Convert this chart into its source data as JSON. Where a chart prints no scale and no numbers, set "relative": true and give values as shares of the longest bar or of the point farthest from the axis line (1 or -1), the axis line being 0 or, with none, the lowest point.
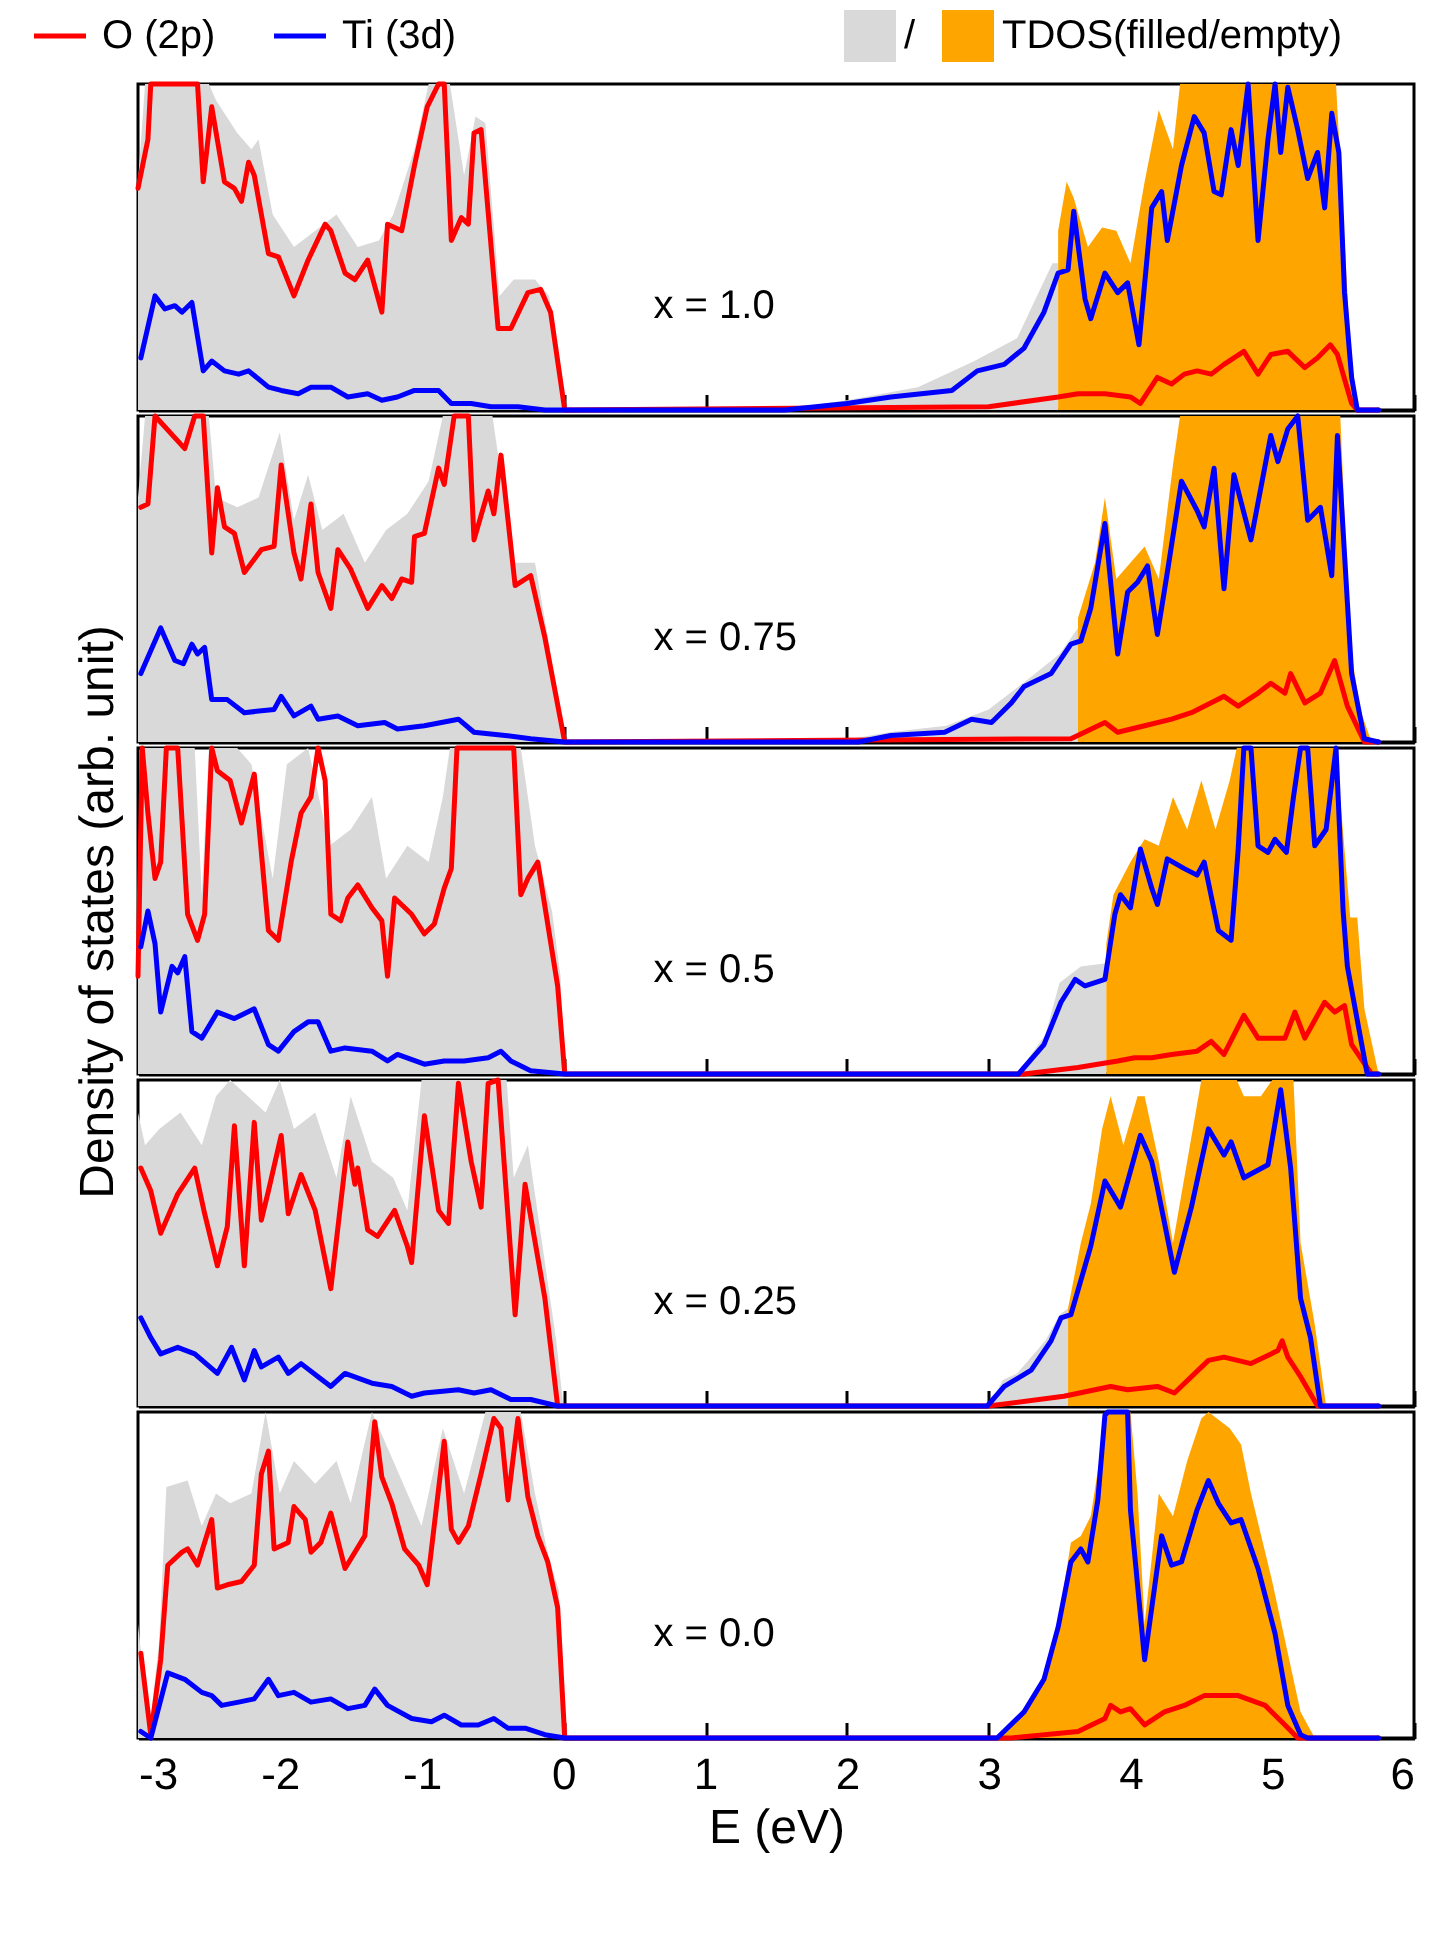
{
  "chart_data": [
    {
      "type": "line",
      "relative": true,
      "xlim": [
        -3,
        6
      ],
      "xticks": [
        -3,
        -2,
        -1,
        0,
        1,
        2,
        3,
        4,
        5,
        6
      ],
      "tick_labels": false,
      "legend": "top",
      "annotations": [
        "x = 1.0"
      ],
      "series": [
        {
          "name": "O (2p)",
          "color": "#ff0000",
          "type": "line",
          "x": [
            -3,
            -2.93,
            -2.91,
            -2.58,
            -2.54,
            -2.48,
            -2.39,
            -2.32,
            -2.27,
            -2.22,
            -2.18,
            -2.08,
            -2.01,
            -1.9,
            -1.8,
            -1.68,
            -1.64,
            -1.54,
            -1.47,
            -1.38,
            -1.28,
            -1.24,
            -1.14,
            -1.05,
            -0.96,
            -0.88,
            -0.84,
            -0.79,
            -0.72,
            -0.67,
            -0.63,
            -0.58,
            -0.46,
            -0.37,
            -0.25,
            -0.16,
            -0.09,
            0.01,
            3.0,
            3.49,
            3.63,
            3.82,
            4.0,
            4.07,
            4.19,
            4.29,
            4.38,
            4.47,
            4.57,
            4.66,
            4.8,
            4.9,
            4.99,
            5.11,
            5.23,
            5.32,
            5.41,
            5.46,
            5.56,
            5.6,
            5.75
          ],
          "values": [
            0.68,
            0.83,
            1,
            1,
            0.7,
            0.93,
            0.7,
            0.68,
            0.64,
            0.76,
            0.72,
            0.48,
            0.47,
            0.35,
            0.46,
            0.57,
            0.55,
            0.42,
            0.4,
            0.46,
            0.3,
            0.57,
            0.55,
            0.75,
            0.93,
            1,
            1,
            0.52,
            0.59,
            0.57,
            0.85,
            0.86,
            0.25,
            0.25,
            0.36,
            0.37,
            0.3,
            0,
            0.01,
            0.04,
            0.05,
            0.05,
            0.04,
            0.02,
            0.1,
            0.08,
            0.11,
            0.12,
            0.11,
            0.14,
            0.18,
            0.11,
            0.17,
            0.18,
            0.13,
            0.16,
            0.2,
            0.17,
            0.02,
            0,
            0
          ]
        },
        {
          "name": "Ti (3d)",
          "color": "#0000ff",
          "type": "line",
          "x": [
            -2.98,
            -2.88,
            -2.81,
            -2.74,
            -2.69,
            -2.62,
            -2.54,
            -2.48,
            -2.39,
            -2.29,
            -2.22,
            -2.08,
            -1.99,
            -1.87,
            -1.78,
            -1.64,
            -1.52,
            -1.38,
            -1.28,
            -1.17,
            -1.05,
            -0.88,
            -0.79,
            -0.65,
            -0.51,
            -0.32,
            -0.13,
            0.01,
            1.56,
            2.0,
            2.31,
            2.74,
            2.92,
            3.11,
            3.25,
            3.39,
            3.49,
            3.56,
            3.6,
            3.68,
            3.72,
            3.82,
            3.91,
            3.98,
            4.06,
            4.15,
            4.22,
            4.26,
            4.36,
            4.45,
            4.52,
            4.59,
            4.64,
            4.71,
            4.76,
            4.83,
            4.9,
            4.97,
            5.02,
            5.06,
            5.11,
            5.18,
            5.25,
            5.32,
            5.37,
            5.42,
            5.47,
            5.51,
            5.56,
            5.6,
            5.75
          ],
          "values": [
            0.16,
            0.35,
            0.31,
            0.32,
            0.3,
            0.33,
            0.12,
            0.15,
            0.12,
            0.11,
            0.12,
            0.07,
            0.06,
            0.05,
            0.07,
            0.07,
            0.04,
            0.05,
            0.03,
            0.04,
            0.06,
            0.06,
            0.02,
            0.02,
            0.01,
            0.01,
            0,
            0,
            0,
            0.02,
            0.04,
            0.06,
            0.12,
            0.14,
            0.19,
            0.3,
            0.42,
            0.43,
            0.61,
            0.34,
            0.28,
            0.42,
            0.36,
            0.39,
            0.2,
            0.62,
            0.67,
            0.52,
            0.75,
            0.9,
            0.85,
            0.67,
            0.66,
            0.86,
            0.75,
            1,
            0.52,
            0.83,
            1,
            0.79,
            0.99,
            0.86,
            0.71,
            0.79,
            0.62,
            0.91,
            0.79,
            0.36,
            0.1,
            0,
            0
          ]
        },
        {
          "name": "/",
          "color": "#d9d9d9",
          "type": "area",
          "x": [
            -3,
            -2.95,
            -2.5,
            -2.45,
            -2.3,
            -2.2,
            -2.15,
            -2.05,
            -1.9,
            -1.75,
            -1.6,
            -1.45,
            -1.3,
            -1.2,
            -1.05,
            -0.95,
            -0.8,
            -0.7,
            -0.62,
            -0.55,
            -0.45,
            -0.35,
            -0.2,
            -0.1,
            0,
            1.5,
            2,
            2.5,
            2.9,
            3.2,
            3.45,
            3.49
          ],
          "values": [
            0.7,
            1,
            1,
            0.95,
            0.85,
            0.8,
            0.83,
            0.6,
            0.5,
            0.55,
            0.6,
            0.5,
            0.52,
            0.6,
            0.8,
            1,
            1,
            0.72,
            0.9,
            0.88,
            0.35,
            0.4,
            0.4,
            0.35,
            0,
            0,
            0.03,
            0.07,
            0.15,
            0.22,
            0.45,
            0.45
          ]
        },
        {
          "name": "TDOS(filled/empty)",
          "color": "#ffa500",
          "type": "area",
          "x": [
            3.49,
            3.55,
            3.6,
            3.7,
            3.8,
            3.9,
            4.0,
            4.1,
            4.2,
            4.3,
            4.35,
            5.45,
            5.5,
            5.55,
            5.6
          ],
          "values": [
            0.55,
            0.7,
            0.65,
            0.5,
            0.56,
            0.55,
            0.45,
            0.7,
            0.92,
            0.8,
            1,
            1,
            0.6,
            0.2,
            0
          ]
        }
      ]
    },
    {
      "type": "line",
      "relative": true,
      "xlim": [
        -3,
        6
      ],
      "xticks": [
        -3,
        -2,
        -1,
        0,
        1,
        2,
        3,
        4,
        5,
        6
      ],
      "tick_labels": false,
      "annotations": [
        "x = 0.75"
      ],
      "series": [
        {
          "color": "#ff0000",
          "type": "line",
          "x": [
            -2.98,
            -2.93,
            -2.88,
            -2.67,
            -2.6,
            -2.54,
            -2.48,
            -2.44,
            -2.39,
            -2.32,
            -2.25,
            -2.13,
            -2.04,
            -1.99,
            -1.9,
            -1.85,
            -1.78,
            -1.73,
            -1.64,
            -1.59,
            -1.5,
            -1.38,
            -1.28,
            -1.21,
            -1.14,
            -1.07,
            -1.05,
            -0.98,
            -0.88,
            -0.84,
            -0.77,
            -0.67,
            -0.63,
            -0.53,
            -0.49,
            -0.44,
            -0.34,
            -0.23,
            -0.13,
            0.01,
            3.58,
            3.82,
            3.91,
            4.1,
            4.29,
            4.43,
            4.66,
            4.76,
            4.9,
            4.99,
            5.09,
            5.13,
            5.23,
            5.34,
            5.44,
            5.53,
            5.65,
            5.75
          ],
          "values": [
            0.72,
            0.73,
            1,
            0.9,
            1,
            1,
            0.58,
            0.78,
            0.66,
            0.64,
            0.52,
            0.59,
            0.6,
            0.85,
            0.58,
            0.5,
            0.73,
            0.52,
            0.41,
            0.59,
            0.53,
            0.41,
            0.48,
            0.44,
            0.5,
            0.49,
            0.63,
            0.64,
            0.84,
            0.79,
            1,
            1,
            0.62,
            0.77,
            0.7,
            0.88,
            0.48,
            0.51,
            0.32,
            0,
            0.01,
            0.06,
            0.03,
            0.05,
            0.07,
            0.09,
            0.14,
            0.11,
            0.15,
            0.18,
            0.15,
            0.21,
            0.12,
            0.15,
            0.25,
            0.11,
            0,
            0
          ]
        },
        {
          "color": "#0000ff",
          "type": "line",
          "x": [
            -2.98,
            -2.84,
            -2.74,
            -2.68,
            -2.62,
            -2.58,
            -2.53,
            -2.48,
            -2.37,
            -2.25,
            -2.04,
            -1.99,
            -1.9,
            -1.78,
            -1.73,
            -1.59,
            -1.45,
            -1.26,
            -1.17,
            -0.98,
            -0.74,
            -0.63,
            -0.41,
            -0.23,
            0.01,
            2.08,
            2.31,
            2.69,
            2.88,
            3.02,
            3.16,
            3.25,
            3.44,
            3.58,
            3.65,
            3.72,
            3.82,
            3.91,
            3.98,
            4.05,
            4.12,
            4.19,
            4.26,
            4.36,
            4.47,
            4.52,
            4.59,
            4.66,
            4.73,
            4.85,
            4.92,
            4.99,
            5.04,
            5.11,
            5.18,
            5.25,
            5.34,
            5.42,
            5.46,
            5.56,
            5.65,
            5.75
          ],
          "values": [
            0.21,
            0.35,
            0.25,
            0.24,
            0.3,
            0.27,
            0.29,
            0.13,
            0.13,
            0.09,
            0.1,
            0.14,
            0.08,
            0.11,
            0.07,
            0.08,
            0.05,
            0.06,
            0.04,
            0.05,
            0.07,
            0.03,
            0.02,
            0.01,
            0,
            0,
            0.02,
            0.03,
            0.07,
            0.06,
            0.12,
            0.17,
            0.21,
            0.3,
            0.31,
            0.41,
            0.67,
            0.27,
            0.46,
            0.49,
            0.54,
            0.33,
            0.52,
            0.8,
            0.71,
            0.66,
            0.84,
            0.47,
            0.82,
            0.62,
            0.78,
            0.94,
            0.86,
            0.96,
            1,
            0.68,
            0.72,
            0.51,
            0.94,
            0.21,
            0.01,
            0
          ]
        },
        {
          "color": "#d9d9d9",
          "type": "area",
          "x": [
            -3,
            -2.95,
            -2.5,
            -2.45,
            -2.3,
            -2.15,
            -2.0,
            -1.9,
            -1.8,
            -1.7,
            -1.55,
            -1.4,
            -1.25,
            -1.1,
            -0.95,
            -0.85,
            -0.5,
            -0.35,
            -0.2,
            -0.1,
            0,
            1.9,
            2.3,
            2.7,
            3.0,
            3.3,
            3.5,
            3.63
          ],
          "values": [
            0.75,
            1,
            1,
            0.75,
            0.72,
            0.75,
            0.95,
            0.68,
            0.82,
            0.65,
            0.7,
            0.55,
            0.65,
            0.7,
            0.8,
            1,
            1,
            0.55,
            0.55,
            0.3,
            0,
            0,
            0.03,
            0.05,
            0.1,
            0.2,
            0.27,
            0.35
          ]
        },
        {
          "color": "#ffa500",
          "type": "area",
          "x": [
            3.63,
            3.75,
            3.82,
            3.9,
            4.0,
            4.1,
            4.2,
            4.3,
            4.35,
            5.48,
            5.55,
            5.62,
            5.7
          ],
          "values": [
            0.38,
            0.55,
            0.75,
            0.5,
            0.55,
            0.6,
            0.5,
            0.85,
            1,
            1,
            0.3,
            0.1,
            0
          ]
        }
      ]
    },
    {
      "type": "line",
      "relative": true,
      "xlim": [
        -3,
        6
      ],
      "xticks": [
        -3,
        -2,
        -1,
        0,
        1,
        2,
        3,
        4,
        5,
        6
      ],
      "tick_labels": false,
      "ylabel": "Density of states (arb. unit)",
      "annotations": [
        "x = 0.5"
      ],
      "series": [
        {
          "color": "#ff0000",
          "type": "line",
          "x": [
            -3,
            -2.97,
            -2.93,
            -2.88,
            -2.84,
            -2.8,
            -2.72,
            -2.65,
            -2.58,
            -2.53,
            -2.48,
            -2.44,
            -2.35,
            -2.27,
            -2.18,
            -2.08,
            -2.01,
            -1.92,
            -1.85,
            -1.78,
            -1.73,
            -1.68,
            -1.64,
            -1.57,
            -1.52,
            -1.45,
            -1.35,
            -1.28,
            -1.24,
            -1.19,
            -1.07,
            -0.98,
            -0.91,
            -0.84,
            -0.79,
            -0.75,
            -0.35,
            -0.3,
            -0.25,
            -0.18,
            -0.04,
            0.01,
            3.25,
            3.63,
            3.91,
            4.03,
            4.15,
            4.29,
            4.47,
            4.57,
            4.66,
            4.8,
            4.9,
            5.09,
            5.16,
            5.23,
            5.37,
            5.44,
            5.51,
            5.56,
            5.7,
            5.75
          ],
          "values": [
            0.3,
            1,
            0.8,
            0.6,
            0.65,
            1,
            1,
            0.49,
            0.41,
            0.49,
            1,
            0.93,
            0.9,
            0.77,
            0.92,
            0.44,
            0.41,
            0.65,
            0.8,
            0.85,
            1,
            0.9,
            0.49,
            0.47,
            0.54,
            0.58,
            0.51,
            0.47,
            0.3,
            0.54,
            0.49,
            0.43,
            0.46,
            0.57,
            0.63,
            1,
            1,
            0.55,
            0.6,
            0.65,
            0.27,
            0,
            0,
            0.02,
            0.04,
            0.05,
            0.05,
            0.06,
            0.07,
            0.1,
            0.06,
            0.18,
            0.11,
            0.11,
            0.19,
            0.11,
            0.22,
            0.19,
            0.21,
            0.09,
            0,
            0
          ]
        },
        {
          "color": "#0000ff",
          "type": "line",
          "x": [
            -2.98,
            -2.93,
            -2.88,
            -2.84,
            -2.76,
            -2.72,
            -2.67,
            -2.62,
            -2.55,
            -2.44,
            -2.32,
            -2.18,
            -2.08,
            -2.01,
            -1.9,
            -1.8,
            -1.73,
            -1.64,
            -1.54,
            -1.35,
            -1.24,
            -1.17,
            -0.98,
            -0.84,
            -0.7,
            -0.53,
            -0.44,
            -0.37,
            -0.23,
            0.01,
            3.21,
            3.39,
            3.51,
            3.61,
            3.68,
            3.75,
            3.82,
            3.89,
            3.93,
            4.0,
            4.07,
            4.15,
            4.19,
            4.26,
            4.38,
            4.47,
            4.52,
            4.62,
            4.71,
            4.76,
            4.8,
            4.85,
            4.9,
            4.97,
            5.02,
            5.1,
            5.15,
            5.2,
            5.25,
            5.3,
            5.38,
            5.45,
            5.5,
            5.53,
            5.67,
            5.75
          ],
          "values": [
            0.39,
            0.5,
            0.4,
            0.19,
            0.33,
            0.31,
            0.36,
            0.13,
            0.11,
            0.19,
            0.17,
            0.2,
            0.09,
            0.07,
            0.13,
            0.16,
            0.16,
            0.07,
            0.08,
            0.07,
            0.04,
            0.06,
            0.03,
            0.04,
            0.04,
            0.05,
            0.07,
            0.04,
            0.01,
            0,
            0,
            0.09,
            0.22,
            0.29,
            0.27,
            0.28,
            0.29,
            0.49,
            0.55,
            0.51,
            0.69,
            0.57,
            0.52,
            0.66,
            0.63,
            0.61,
            0.65,
            0.44,
            0.41,
            0.69,
            1,
            1,
            0.7,
            0.68,
            0.72,
            0.68,
            0.85,
            1,
            1,
            0.7,
            0.75,
            1,
            0.5,
            0.33,
            0,
            0
          ]
        },
        {
          "color": "#d9d9d9",
          "type": "area",
          "x": [
            -3,
            -2.97,
            -2.6,
            -2.55,
            -2.5,
            -2.3,
            -2.2,
            -2.05,
            -1.95,
            -1.8,
            -1.65,
            -1.5,
            -1.35,
            -1.25,
            -1.1,
            -0.95,
            -0.85,
            -0.8,
            -0.3,
            -0.2,
            -0.08,
            -0.02,
            0,
            3.2,
            3.4,
            3.5,
            3.65,
            3.83
          ],
          "values": [
            0.6,
            1,
            1,
            0.55,
            1,
            1,
            0.95,
            0.6,
            0.95,
            1,
            0.7,
            0.75,
            0.85,
            0.6,
            0.7,
            0.65,
            0.85,
            1,
            1,
            0.7,
            0.5,
            0.3,
            0,
            0,
            0.12,
            0.28,
            0.33,
            0.34
          ]
        },
        {
          "color": "#ffa500",
          "type": "area",
          "x": [
            3.83,
            3.88,
            4.0,
            4.1,
            4.2,
            4.3,
            4.4,
            4.5,
            4.6,
            4.7,
            4.75,
            5.45,
            5.55,
            5.6,
            5.65,
            5.75
          ],
          "values": [
            0.4,
            0.55,
            0.65,
            0.72,
            0.7,
            0.85,
            0.75,
            0.9,
            0.75,
            0.9,
            1,
            1,
            0.48,
            0.48,
            0.2,
            0
          ]
        }
      ]
    },
    {
      "type": "line",
      "relative": true,
      "xlim": [
        -3,
        6
      ],
      "xticks": [
        -3,
        -2,
        -1,
        0,
        1,
        2,
        3,
        4,
        5,
        6
      ],
      "tick_labels": false,
      "annotations": [
        "x = 0.25"
      ],
      "series": [
        {
          "color": "#ff0000",
          "type": "line",
          "x": [
            -2.98,
            -2.91,
            -2.84,
            -2.72,
            -2.6,
            -2.53,
            -2.44,
            -2.37,
            -2.32,
            -2.25,
            -2.18,
            -2.13,
            -2.08,
            -1.99,
            -1.94,
            -1.85,
            -1.75,
            -1.64,
            -1.52,
            -1.47,
            -1.45,
            -1.38,
            -1.31,
            -1.19,
            -1.1,
            -1.07,
            -0.98,
            -0.88,
            -0.81,
            -0.74,
            -0.65,
            -0.58,
            -0.53,
            -0.46,
            -0.34,
            -0.27,
            -0.13,
            -0.04,
            3.0,
            3.53,
            3.86,
            3.98,
            4.19,
            4.31,
            4.55,
            4.66,
            4.85,
            5.04,
            5.07,
            5.11,
            5.2,
            5.32,
            5.75
          ],
          "values": [
            0.73,
            0.66,
            0.53,
            0.65,
            0.73,
            0.59,
            0.43,
            0.55,
            0.86,
            0.43,
            0.87,
            0.57,
            0.66,
            0.83,
            0.59,
            0.71,
            0.6,
            0.36,
            0.81,
            0.68,
            0.73,
            0.54,
            0.52,
            0.6,
            0.49,
            0.44,
            0.89,
            0.6,
            0.56,
            0.99,
            0.75,
            0.61,
            0.99,
            1,
            0.28,
            0.68,
            0.33,
            0,
            0,
            0.03,
            0.06,
            0.05,
            0.06,
            0.04,
            0.14,
            0.15,
            0.13,
            0.17,
            0.2,
            0.15,
            0.09,
            0,
            0
          ]
        },
        {
          "color": "#0000ff",
          "type": "line",
          "x": [
            -2.98,
            -2.91,
            -2.84,
            -2.72,
            -2.6,
            -2.44,
            -2.34,
            -2.25,
            -2.18,
            -2.13,
            -2.01,
            -1.94,
            -1.85,
            -1.73,
            -1.64,
            -1.54,
            -1.35,
            -1.21,
            -1.07,
            -0.98,
            -0.74,
            -0.63,
            -0.51,
            -0.37,
            -0.23,
            -0.04,
            2.99,
            3.11,
            3.3,
            3.44,
            3.51,
            3.58,
            3.68,
            3.72,
            3.82,
            3.93,
            4.07,
            4.15,
            4.19,
            4.31,
            4.43,
            4.55,
            4.66,
            4.71,
            4.8,
            4.97,
            5.06,
            5.13,
            5.2,
            5.27,
            5.34,
            5.75
          ],
          "values": [
            0.27,
            0.21,
            0.16,
            0.18,
            0.16,
            0.1,
            0.18,
            0.08,
            0.17,
            0.12,
            0.15,
            0.1,
            0.13,
            0.09,
            0.06,
            0.1,
            0.07,
            0.06,
            0.03,
            0.04,
            0.05,
            0.04,
            0.05,
            0.02,
            0.02,
            0,
            0,
            0.06,
            0.11,
            0.2,
            0.27,
            0.28,
            0.43,
            0.49,
            0.69,
            0.61,
            0.83,
            0.75,
            0.67,
            0.41,
            0.61,
            0.85,
            0.77,
            0.81,
            0.7,
            0.74,
            0.97,
            0.73,
            0.33,
            0.21,
            0,
            0
          ]
        },
        {
          "color": "#d9d9d9",
          "type": "area",
          "x": [
            -3,
            -2.95,
            -2.85,
            -2.7,
            -2.55,
            -2.45,
            -2.35,
            -2.1,
            -2.0,
            -1.9,
            -1.75,
            -1.6,
            -1.5,
            -1.35,
            -1.2,
            -1.1,
            -1.0,
            -0.4,
            -0.35,
            -0.25,
            -0.15,
            -0.05,
            0,
            3.0,
            3.1,
            3.2,
            3.4,
            3.5,
            3.56
          ],
          "values": [
            0.9,
            0.8,
            0.85,
            0.9,
            0.8,
            0.95,
            1,
            0.9,
            1,
            0.85,
            0.9,
            0.7,
            0.95,
            0.75,
            0.7,
            0.6,
            1,
            1,
            0.7,
            0.8,
            0.5,
            0.2,
            0,
            0,
            0.08,
            0.1,
            0.2,
            0.28,
            0.3
          ]
        },
        {
          "color": "#ffa500",
          "type": "area",
          "x": [
            3.56,
            3.65,
            3.72,
            3.8,
            3.86,
            3.95,
            4.05,
            4.1,
            4.2,
            4.3,
            4.4,
            4.5,
            4.75,
            4.8,
            4.92,
            5.0,
            5.15,
            5.2,
            5.3,
            5.38
          ],
          "values": [
            0.3,
            0.5,
            0.62,
            0.85,
            0.95,
            0.8,
            0.95,
            0.95,
            0.75,
            0.5,
            0.75,
            1,
            1,
            0.95,
            0.95,
            1,
            1,
            0.5,
            0.25,
            0
          ]
        }
      ]
    },
    {
      "type": "line",
      "relative": true,
      "xlim": [
        -3,
        6
      ],
      "xticks": [
        -3,
        -2,
        -1,
        0,
        1,
        2,
        3,
        4,
        5,
        6
      ],
      "tick_labels": "x",
      "xlabel": "E (eV)",
      "annotations": [
        "x = 0.0"
      ],
      "series": [
        {
          "color": "#ff0000",
          "type": "line",
          "x": [
            -2.98,
            -2.91,
            -2.84,
            -2.79,
            -2.69,
            -2.65,
            -2.58,
            -2.48,
            -2.44,
            -2.37,
            -2.27,
            -2.18,
            -2.13,
            -2.08,
            -2.04,
            -1.94,
            -1.9,
            -1.82,
            -1.78,
            -1.71,
            -1.64,
            -1.54,
            -1.4,
            -1.33,
            -1.28,
            -1.21,
            -1.12,
            -1.02,
            -0.96,
            -0.84,
            -0.79,
            -0.74,
            -0.67,
            -0.58,
            -0.49,
            -0.44,
            -0.39,
            -0.32,
            -0.25,
            -0.18,
            -0.11,
            -0.04,
            0.01,
            3.16,
            3.63,
            3.82,
            3.86,
            3.93,
            4.0,
            4.1,
            4.24,
            4.38,
            4.52,
            4.76,
            4.95,
            5.09,
            5.18,
            5.75
          ],
          "values": [
            0.26,
            0.01,
            0.24,
            0.53,
            0.57,
            0.58,
            0.53,
            0.67,
            0.46,
            0.47,
            0.48,
            0.53,
            0.81,
            0.88,
            0.58,
            0.6,
            0.71,
            0.67,
            0.57,
            0.6,
            0.69,
            0.52,
            0.62,
            0.97,
            0.8,
            0.72,
            0.58,
            0.53,
            0.47,
            0.91,
            0.64,
            0.6,
            0.65,
            0.81,
            0.98,
            0.95,
            0.73,
            0.98,
            0.74,
            0.62,
            0.54,
            0.4,
            0,
            0,
            0.02,
            0.06,
            0.1,
            0.08,
            0.09,
            0.04,
            0.08,
            0.1,
            0.13,
            0.13,
            0.1,
            0.04,
            0,
            0
          ]
        },
        {
          "color": "#0000ff",
          "type": "line",
          "x": [
            -2.98,
            -2.91,
            -2.79,
            -2.67,
            -2.55,
            -2.48,
            -2.41,
            -2.29,
            -2.18,
            -2.08,
            -2.01,
            -1.9,
            -1.78,
            -1.64,
            -1.52,
            -1.4,
            -1.33,
            -1.24,
            -1.07,
            -0.93,
            -0.84,
            -0.72,
            -0.6,
            -0.49,
            -0.39,
            -0.27,
            -0.13,
            0.01,
            3.06,
            3.25,
            3.39,
            3.49,
            3.58,
            3.65,
            3.7,
            3.77,
            3.82,
            3.84,
            3.98,
            4.0,
            4.1,
            4.22,
            4.29,
            4.36,
            4.47,
            4.55,
            4.62,
            4.71,
            4.78,
            4.9,
            5.02,
            5.11,
            5.2,
            5.25,
            5.75
          ],
          "values": [
            0.02,
            0,
            0.2,
            0.18,
            0.14,
            0.13,
            0.1,
            0.11,
            0.12,
            0.18,
            0.13,
            0.14,
            0.11,
            0.12,
            0.09,
            0.1,
            0.15,
            0.1,
            0.06,
            0.05,
            0.07,
            0.04,
            0.04,
            0.06,
            0.03,
            0.03,
            0.01,
            0,
            0,
            0.08,
            0.18,
            0.34,
            0.54,
            0.58,
            0.54,
            0.73,
            0.99,
            1,
            1,
            0.7,
            0.24,
            0.62,
            0.53,
            0.54,
            0.7,
            0.79,
            0.72,
            0.66,
            0.67,
            0.52,
            0.32,
            0.1,
            0.01,
            0,
            0
          ]
        },
        {
          "color": "#d9d9d9",
          "type": "area",
          "x": [
            -3,
            -2.92,
            -2.85,
            -2.8,
            -2.65,
            -2.55,
            -2.45,
            -2.35,
            -2.2,
            -2.1,
            -2.0,
            -1.9,
            -1.75,
            -1.6,
            -1.5,
            -1.35,
            -1.25,
            -1.1,
            -1.0,
            -0.85,
            -0.7,
            -0.55,
            -0.3,
            -0.2,
            -0.1,
            -0.03,
            0
          ],
          "values": [
            0.35,
            0.02,
            0.3,
            0.77,
            0.79,
            0.65,
            0.75,
            0.72,
            0.75,
            1,
            0.75,
            0.85,
            0.78,
            0.85,
            0.72,
            1,
            0.9,
            0.75,
            0.65,
            0.95,
            0.75,
            1,
            1,
            0.75,
            0.55,
            0.45,
            0
          ]
        },
        {
          "color": "#ffa500",
          "type": "area",
          "x": [
            3.06,
            3.25,
            3.4,
            3.5,
            3.58,
            3.65,
            3.72,
            3.78,
            3.82,
            4.0,
            4.05,
            4.1,
            4.2,
            4.3,
            4.4,
            4.5,
            4.55,
            4.7,
            4.78,
            4.85,
            5.0,
            5.1,
            5.2,
            5.3
          ],
          "values": [
            0,
            0.08,
            0.2,
            0.38,
            0.6,
            0.62,
            0.68,
            0.85,
            1,
            1,
            0.75,
            0.35,
            0.75,
            0.68,
            0.85,
            0.98,
            1,
            0.95,
            0.9,
            0.75,
            0.48,
            0.28,
            0.08,
            0
          ]
        }
      ]
    }
  ]
}
